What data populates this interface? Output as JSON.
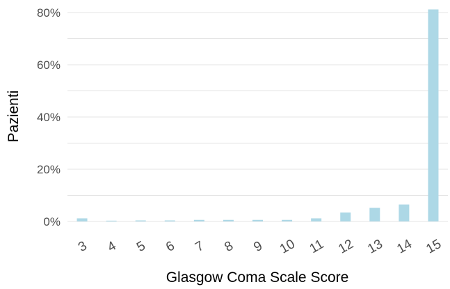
{
  "chart_data": {
    "type": "bar",
    "xlabel": "Glasgow Coma Scale Score",
    "ylabel": "Pazienti",
    "categories": [
      "3",
      "4",
      "5",
      "6",
      "7",
      "8",
      "9",
      "10",
      "11",
      "12",
      "13",
      "14",
      "15"
    ],
    "values": [
      1.2,
      0.3,
      0.4,
      0.4,
      0.6,
      0.6,
      0.6,
      0.6,
      1.2,
      3.4,
      5.2,
      6.5,
      81.2
    ],
    "yticks": [
      0,
      20,
      40,
      60,
      80
    ],
    "ytick_labels": [
      "0%",
      "20%",
      "40%",
      "60%",
      "80%"
    ],
    "ylim": [
      0,
      85
    ],
    "grid": true,
    "colors": {
      "bar": "#add8e6",
      "grid_major": "#ebebeb",
      "grid_minor": "#d9d9d9"
    }
  }
}
